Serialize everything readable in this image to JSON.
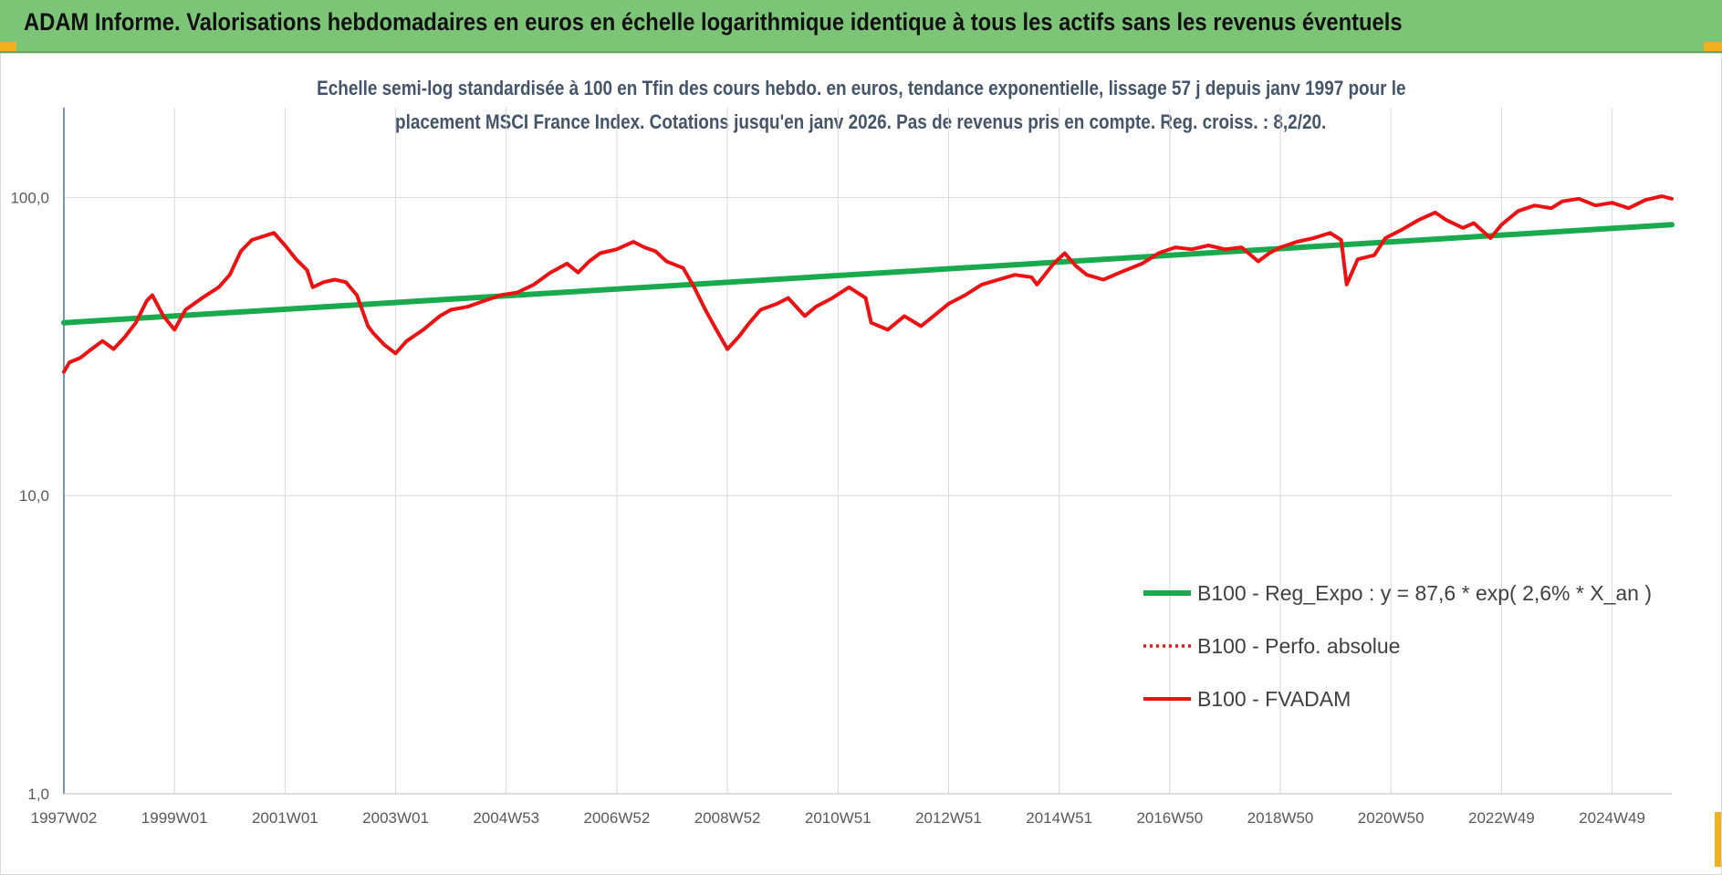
{
  "header": {
    "title": "ADAM Informe. Valorisations hebdomadaires en euros en échelle logarithmique identique à tous les actifs sans les revenus éventuels"
  },
  "colors": {
    "banner": "#7cc576",
    "accent_corner": "#f2b01e",
    "trend": "#1aaa4e",
    "fvadam": "#ee1111",
    "perfo": "#ee1111",
    "subtitle": "#44546a"
  },
  "chart_data": {
    "type": "line",
    "title_line1": "Echelle semi-log standardisée à 100 en Tfin des cours hebdo. en euros, tendance exponentielle, lissage 57 j depuis janv 1997 pour le",
    "title_line2": "placement MSCI France Index. Cotations jusqu'en janv 2026. Pas de revenus pris en compte. Reg. croiss. : 8,2/20.",
    "y_scale": "log",
    "ylim": [
      1,
      200
    ],
    "y_ticks": [
      1,
      10,
      100
    ],
    "y_tick_labels": [
      "1,0",
      "10,0",
      "100,0"
    ],
    "x_range": [
      1997.0,
      2026.08
    ],
    "x_ticks": [
      1997.0,
      1999.0,
      2001.0,
      2003.0,
      2005.0,
      2007.0,
      2009.0,
      2011.0,
      2013.0,
      2015.0,
      2017.0,
      2019.0,
      2021.0,
      2023.0,
      2025.0
    ],
    "x_tick_labels": [
      "1997W02",
      "1999W01",
      "2001W01",
      "2003W01",
      "2004W53",
      "2006W52",
      "2008W52",
      "2010W51",
      "2012W51",
      "2014W51",
      "2016W50",
      "2018W50",
      "2020W50",
      "2022W49",
      "2024W49"
    ],
    "grid": true,
    "legend_position": "lower-right",
    "series": [
      {
        "name": "B100 - Reg_Expo : y = 87,6 * exp( 2,6% *  X_an )",
        "style": "solid-thick",
        "x": [
          1997.0,
          2026.08
        ],
        "y": [
          38,
          81
        ]
      },
      {
        "name": "B100 - Perfo. absolue",
        "style": "dotted",
        "x": [],
        "y": []
      },
      {
        "name": "B100 - FVADAM",
        "style": "solid",
        "x": [
          1997.0,
          1997.1,
          1997.3,
          1997.5,
          1997.7,
          1997.9,
          1998.1,
          1998.3,
          1998.5,
          1998.6,
          1998.8,
          1999.0,
          1999.2,
          1999.5,
          1999.8,
          2000.0,
          2000.2,
          2000.4,
          2000.6,
          2000.8,
          2001.0,
          2001.2,
          2001.4,
          2001.5,
          2001.7,
          2001.9,
          2002.1,
          2002.3,
          2002.5,
          2002.6,
          2002.8,
          2003.0,
          2003.2,
          2003.5,
          2003.8,
          2004.0,
          2004.3,
          2004.6,
          2004.9,
          2005.2,
          2005.5,
          2005.8,
          2006.1,
          2006.3,
          2006.5,
          2006.7,
          2007.0,
          2007.3,
          2007.5,
          2007.7,
          2007.9,
          2008.2,
          2008.4,
          2008.6,
          2008.8,
          2009.0,
          2009.2,
          2009.4,
          2009.6,
          2009.9,
          2010.1,
          2010.4,
          2010.6,
          2010.9,
          2011.2,
          2011.5,
          2011.6,
          2011.9,
          2012.2,
          2012.5,
          2012.8,
          2013.0,
          2013.3,
          2013.6,
          2013.9,
          2014.2,
          2014.5,
          2014.6,
          2014.9,
          2015.1,
          2015.3,
          2015.5,
          2015.8,
          2016.1,
          2016.5,
          2016.8,
          2017.1,
          2017.4,
          2017.7,
          2018.0,
          2018.3,
          2018.6,
          2018.8,
          2019.0,
          2019.3,
          2019.6,
          2019.9,
          2020.1,
          2020.2,
          2020.4,
          2020.7,
          2020.9,
          2021.2,
          2021.5,
          2021.8,
          2022.0,
          2022.3,
          2022.5,
          2022.8,
          2023.0,
          2023.3,
          2023.6,
          2023.9,
          2024.1,
          2024.4,
          2024.7,
          2025.0,
          2025.3,
          2025.6,
          2025.9,
          2026.08
        ],
        "y": [
          26,
          28,
          29,
          31,
          33,
          31,
          34,
          38,
          45,
          47,
          40,
          36,
          42,
          46,
          50,
          55,
          66,
          72,
          74,
          76,
          69,
          62,
          57,
          50,
          52,
          53,
          52,
          47,
          37,
          35,
          32,
          30,
          33,
          36,
          40,
          42,
          43,
          45,
          47,
          48,
          51,
          56,
          60,
          56,
          61,
          65,
          67,
          71,
          68,
          66,
          61,
          58,
          50,
          42,
          36,
          31,
          34,
          38,
          42,
          44,
          46,
          40,
          43,
          46,
          50,
          46,
          38,
          36,
          40,
          37,
          41,
          44,
          47,
          51,
          53,
          55,
          54,
          51,
          60,
          65,
          59,
          55,
          53,
          56,
          60,
          65,
          68,
          67,
          69,
          67,
          68,
          61,
          65,
          68,
          71,
          73,
          76,
          72,
          51,
          62,
          64,
          73,
          78,
          84,
          89,
          84,
          79,
          82,
          73,
          81,
          90,
          94,
          92,
          97,
          99,
          94,
          96,
          92,
          98,
          101,
          99
        ]
      }
    ]
  }
}
